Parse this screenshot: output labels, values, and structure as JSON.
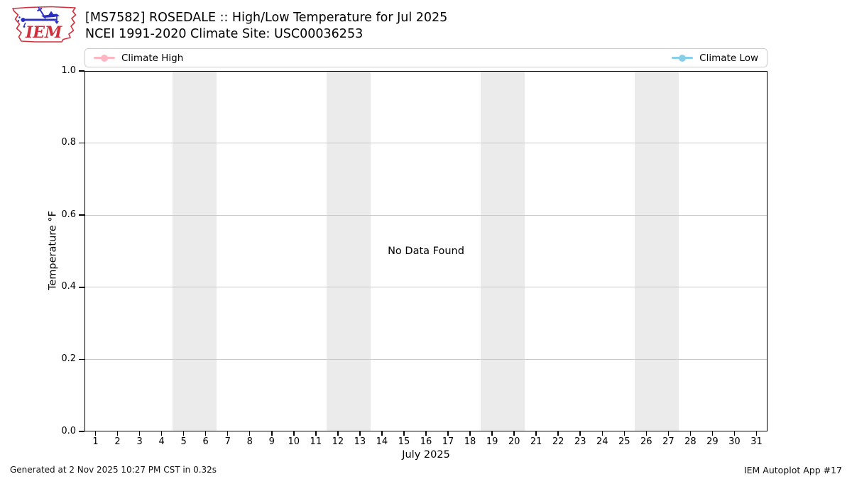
{
  "header": {
    "title_line1": "[MS7582] ROSEDALE :: High/Low Temperature for Jul 2025",
    "title_line2": "NCEI 1991-2020 Climate Site: USC00036253",
    "logo_text": "IEM"
  },
  "legend": {
    "high_label": "Climate High",
    "low_label": "Climate Low",
    "high_color": "#ffb6c1",
    "low_color": "#87ceeb"
  },
  "plot": {
    "no_data_text": "No Data Found",
    "xlabel": "July 2025",
    "ylabel": "Temperature °F",
    "y_tick_labels": [
      "1.0",
      "0.8",
      "0.6",
      "0.4",
      "0.2",
      "0.0"
    ],
    "x_tick_labels": [
      "1",
      "2",
      "3",
      "4",
      "5",
      "6",
      "7",
      "8",
      "9",
      "10",
      "11",
      "12",
      "13",
      "14",
      "15",
      "16",
      "17",
      "18",
      "19",
      "20",
      "21",
      "22",
      "23",
      "24",
      "25",
      "26",
      "27",
      "28",
      "29",
      "30",
      "31"
    ],
    "weekend_bands_days": [
      [
        4.5,
        6.5
      ],
      [
        11.5,
        13.5
      ],
      [
        18.5,
        20.5
      ],
      [
        25.5,
        27.5
      ]
    ],
    "band_color": "#ebebeb",
    "grid_color": "#c9c9c9"
  },
  "footer": {
    "generated_text": "Generated at 2 Nov 2025 10:27 PM CST in 0.32s",
    "app_text": "IEM Autoplot App #17"
  },
  "chart_data": {
    "type": "line",
    "title": "[MS7582] ROSEDALE :: High/Low Temperature for Jul 2025",
    "subtitle": "NCEI 1991-2020 Climate Site: USC00036253",
    "xlabel": "July 2025",
    "ylabel": "Temperature °F",
    "x": [
      1,
      2,
      3,
      4,
      5,
      6,
      7,
      8,
      9,
      10,
      11,
      12,
      13,
      14,
      15,
      16,
      17,
      18,
      19,
      20,
      21,
      22,
      23,
      24,
      25,
      26,
      27,
      28,
      29,
      30,
      31
    ],
    "series": [
      {
        "name": "Climate High",
        "color": "#ffb6c1",
        "values": []
      },
      {
        "name": "Climate Low",
        "color": "#87ceeb",
        "values": []
      }
    ],
    "xlim": [
      0.5,
      31.5
    ],
    "ylim": [
      0.0,
      1.0
    ],
    "y_ticks": [
      0.0,
      0.2,
      0.4,
      0.6,
      0.8,
      1.0
    ],
    "grid": true,
    "legend_position": "top",
    "annotations": [
      "No Data Found"
    ],
    "weekend_shading_days": [
      [
        5,
        6
      ],
      [
        12,
        13
      ],
      [
        19,
        20
      ],
      [
        26,
        27
      ]
    ]
  }
}
